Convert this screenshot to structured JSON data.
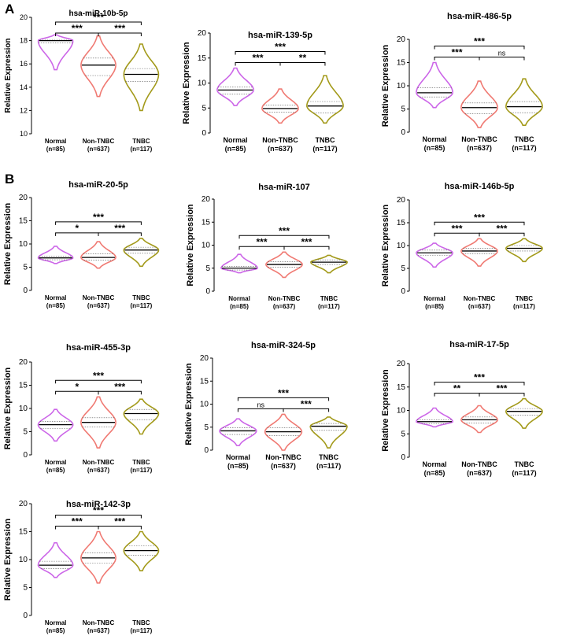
{
  "panels": {
    "A": "A",
    "B": "B"
  },
  "colors": {
    "Normal": "#cc66e8",
    "Non-TNBC": "#f07a73",
    "TNBC": "#a39a1a"
  },
  "chart_data": [
    {
      "type": "violin",
      "panel": "A",
      "title": "hsa-miR-10b-5p",
      "ylabel": "Relative Expression",
      "ylim": [
        10,
        20
      ],
      "yticks": [
        10,
        12,
        14,
        16,
        18,
        20
      ],
      "categories": [
        "Normal",
        "Non-TNBC",
        "TNBC"
      ],
      "counts": [
        "(n=85)",
        "(n=637)",
        "(n=117)"
      ],
      "series": [
        {
          "name": "Normal",
          "min": 15.5,
          "max": 18.5,
          "median": 18.0,
          "q1": 17.8,
          "q3": 18.1
        },
        {
          "name": "Non-TNBC",
          "min": 13.2,
          "max": 18.4,
          "median": 15.9,
          "q1": 15.0,
          "q3": 16.5
        },
        {
          "name": "TNBC",
          "min": 12.0,
          "max": 17.7,
          "median": 15.1,
          "q1": 14.5,
          "q3": 15.6
        }
      ],
      "comparisons": [
        {
          "a": 0,
          "b": 1,
          "label": "***"
        },
        {
          "a": 1,
          "b": 2,
          "label": "***"
        },
        {
          "a": 0,
          "b": 2,
          "label": "***"
        }
      ]
    },
    {
      "type": "violin",
      "panel": "A",
      "title": "hsa-miR-139-5p",
      "ylabel": "Relative Expression",
      "ylim": [
        0,
        20
      ],
      "yticks": [
        0,
        5,
        10,
        15,
        20
      ],
      "categories": [
        "Normal",
        "Non-TNBC",
        "TNBC"
      ],
      "counts": [
        "(n=85)",
        "(n=637)",
        "(n=117)"
      ],
      "series": [
        {
          "name": "Normal",
          "min": 5.5,
          "max": 13.0,
          "median": 8.6,
          "q1": 7.8,
          "q3": 9.2
        },
        {
          "name": "Non-TNBC",
          "min": 2.0,
          "max": 8.8,
          "median": 4.9,
          "q1": 4.2,
          "q3": 5.6
        },
        {
          "name": "TNBC",
          "min": 2.0,
          "max": 11.5,
          "median": 5.4,
          "q1": 4.0,
          "q3": 6.3
        }
      ],
      "comparisons": [
        {
          "a": 0,
          "b": 1,
          "label": "***"
        },
        {
          "a": 1,
          "b": 2,
          "label": "**"
        },
        {
          "a": 0,
          "b": 2,
          "label": "***"
        }
      ]
    },
    {
      "type": "violin",
      "panel": "A",
      "title": "hsa-miR-486-5p",
      "ylabel": "Relative Expression",
      "ylim": [
        0,
        20
      ],
      "yticks": [
        0,
        5,
        10,
        15,
        20
      ],
      "categories": [
        "Normal",
        "Non-TNBC",
        "TNBC"
      ],
      "counts": [
        "(n=85)",
        "(n=637)",
        "(n=117)"
      ],
      "series": [
        {
          "name": "Normal",
          "min": 5.3,
          "max": 15.0,
          "median": 8.5,
          "q1": 7.6,
          "q3": 9.6
        },
        {
          "name": "Non-TNBC",
          "min": 1.0,
          "max": 11.0,
          "median": 5.3,
          "q1": 4.0,
          "q3": 6.3
        },
        {
          "name": "TNBC",
          "min": 1.5,
          "max": 11.5,
          "median": 5.5,
          "q1": 4.2,
          "q3": 6.6
        }
      ],
      "comparisons": [
        {
          "a": 0,
          "b": 1,
          "label": "***"
        },
        {
          "a": 1,
          "b": 2,
          "label": "ns"
        },
        {
          "a": 0,
          "b": 2,
          "label": "***"
        }
      ]
    },
    {
      "type": "violin",
      "panel": "B",
      "title": "hsa-miR-20-5p",
      "ylabel": "Relative Expression",
      "ylim": [
        0,
        20
      ],
      "yticks": [
        0,
        5,
        10,
        15,
        20
      ],
      "categories": [
        "Normal",
        "Non-TNBC",
        "TNBC"
      ],
      "counts": [
        "(n=85)",
        "(n=637)",
        "(n=117)"
      ],
      "series": [
        {
          "name": "Normal",
          "min": 5.8,
          "max": 9.5,
          "median": 7.0,
          "q1": 6.6,
          "q3": 7.4
        },
        {
          "name": "Non-TNBC",
          "min": 4.8,
          "max": 10.5,
          "median": 7.1,
          "q1": 6.5,
          "q3": 7.9
        },
        {
          "name": "TNBC",
          "min": 5.2,
          "max": 11.2,
          "median": 8.7,
          "q1": 8.0,
          "q3": 9.3
        }
      ],
      "comparisons": [
        {
          "a": 0,
          "b": 1,
          "label": "*"
        },
        {
          "a": 1,
          "b": 2,
          "label": "***"
        },
        {
          "a": 0,
          "b": 2,
          "label": "***"
        }
      ]
    },
    {
      "type": "violin",
      "panel": "B",
      "title": "hsa-miR-107",
      "ylabel": "Relative Expression",
      "ylim": [
        0,
        20
      ],
      "yticks": [
        0,
        5,
        10,
        15,
        20
      ],
      "categories": [
        "Normal",
        "Non-TNBC",
        "TNBC"
      ],
      "counts": [
        "(n=85)",
        "(n=637)",
        "(n=117)"
      ],
      "series": [
        {
          "name": "Normal",
          "min": 4.0,
          "max": 8.0,
          "median": 5.0,
          "q1": 4.6,
          "q3": 5.4
        },
        {
          "name": "Non-TNBC",
          "min": 3.0,
          "max": 8.5,
          "median": 5.8,
          "q1": 5.2,
          "q3": 6.4
        },
        {
          "name": "TNBC",
          "min": 4.0,
          "max": 7.8,
          "median": 6.3,
          "q1": 5.8,
          "q3": 6.8
        }
      ],
      "comparisons": [
        {
          "a": 0,
          "b": 1,
          "label": "***"
        },
        {
          "a": 1,
          "b": 2,
          "label": "***"
        },
        {
          "a": 0,
          "b": 2,
          "label": "***"
        }
      ]
    },
    {
      "type": "violin",
      "panel": "B",
      "title": "hsa-miR-146b-5p",
      "ylabel": "Relative Expression",
      "ylim": [
        0,
        20
      ],
      "yticks": [
        0,
        5,
        10,
        15,
        20
      ],
      "categories": [
        "Normal",
        "Non-TNBC",
        "TNBC"
      ],
      "counts": [
        "(n=85)",
        "(n=637)",
        "(n=117)"
      ],
      "series": [
        {
          "name": "Normal",
          "min": 5.3,
          "max": 10.5,
          "median": 8.4,
          "q1": 7.8,
          "q3": 9.0
        },
        {
          "name": "Non-TNBC",
          "min": 5.5,
          "max": 11.5,
          "median": 8.8,
          "q1": 8.2,
          "q3": 9.4
        },
        {
          "name": "TNBC",
          "min": 6.5,
          "max": 11.5,
          "median": 9.4,
          "q1": 8.8,
          "q3": 10.0
        }
      ],
      "comparisons": [
        {
          "a": 0,
          "b": 1,
          "label": "***"
        },
        {
          "a": 1,
          "b": 2,
          "label": "***"
        },
        {
          "a": 0,
          "b": 2,
          "label": "***"
        }
      ]
    },
    {
      "type": "violin",
      "panel": "B",
      "title": "hsa-miR-455-3p",
      "ylabel": "Relative Expression",
      "ylim": [
        0,
        20
      ],
      "yticks": [
        0,
        5,
        10,
        15,
        20
      ],
      "categories": [
        "Normal",
        "Non-TNBC",
        "TNBC"
      ],
      "counts": [
        "(n=85)",
        "(n=637)",
        "(n=117)"
      ],
      "series": [
        {
          "name": "Normal",
          "min": 3.0,
          "max": 9.8,
          "median": 6.5,
          "q1": 5.7,
          "q3": 7.2
        },
        {
          "name": "Non-TNBC",
          "min": 1.5,
          "max": 12.5,
          "median": 7.0,
          "q1": 6.0,
          "q3": 8.0
        },
        {
          "name": "TNBC",
          "min": 4.5,
          "max": 12.0,
          "median": 8.9,
          "q1": 7.6,
          "q3": 9.8
        }
      ],
      "comparisons": [
        {
          "a": 0,
          "b": 1,
          "label": "*"
        },
        {
          "a": 1,
          "b": 2,
          "label": "***"
        },
        {
          "a": 0,
          "b": 2,
          "label": "***"
        }
      ]
    },
    {
      "type": "violin",
      "panel": "B",
      "title": "hsa-miR-324-5p",
      "ylabel": "Relative Expression",
      "ylim": [
        0,
        20
      ],
      "yticks": [
        0,
        5,
        10,
        15,
        20
      ],
      "categories": [
        "Normal",
        "Non-TNBC",
        "TNBC"
      ],
      "counts": [
        "(n=85)",
        "(n=637)",
        "(n=117)"
      ],
      "series": [
        {
          "name": "Normal",
          "min": 1.0,
          "max": 6.8,
          "median": 4.2,
          "q1": 3.4,
          "q3": 4.9
        },
        {
          "name": "Non-TNBC",
          "min": 0.0,
          "max": 7.8,
          "median": 4.0,
          "q1": 3.2,
          "q3": 4.9
        },
        {
          "name": "TNBC",
          "min": 0.5,
          "max": 7.2,
          "median": 5.2,
          "q1": 4.3,
          "q3": 5.8
        }
      ],
      "comparisons": [
        {
          "a": 0,
          "b": 1,
          "label": "ns"
        },
        {
          "a": 1,
          "b": 2,
          "label": "***"
        },
        {
          "a": 0,
          "b": 2,
          "label": "***"
        }
      ]
    },
    {
      "type": "violin",
      "panel": "B",
      "title": "hsa-miR-17-5p",
      "ylabel": "Relative Expression",
      "ylim": [
        0,
        20
      ],
      "yticks": [
        0,
        5,
        10,
        15,
        20
      ],
      "categories": [
        "Normal",
        "Non-TNBC",
        "TNBC"
      ],
      "counts": [
        "(n=85)",
        "(n=637)",
        "(n=117)"
      ],
      "series": [
        {
          "name": "Normal",
          "min": 6.5,
          "max": 10.5,
          "median": 7.6,
          "q1": 7.2,
          "q3": 8.0
        },
        {
          "name": "Non-TNBC",
          "min": 5.3,
          "max": 11.0,
          "median": 8.0,
          "q1": 7.3,
          "q3": 8.6
        },
        {
          "name": "TNBC",
          "min": 6.2,
          "max": 12.5,
          "median": 9.8,
          "q1": 9.0,
          "q3": 10.4
        }
      ],
      "comparisons": [
        {
          "a": 0,
          "b": 1,
          "label": "**"
        },
        {
          "a": 1,
          "b": 2,
          "label": "***"
        },
        {
          "a": 0,
          "b": 2,
          "label": "***"
        }
      ]
    },
    {
      "type": "violin",
      "panel": "B",
      "title": "hsa-miR-142-3p",
      "ylabel": "Relative Expression",
      "ylim": [
        0,
        20
      ],
      "yticks": [
        0,
        5,
        10,
        15,
        20
      ],
      "categories": [
        "Normal",
        "Non-TNBC",
        "TNBC"
      ],
      "counts": [
        "(n=85)",
        "(n=637)",
        "(n=117)"
      ],
      "series": [
        {
          "name": "Normal",
          "min": 6.8,
          "max": 13.0,
          "median": 9.0,
          "q1": 8.4,
          "q3": 9.7
        },
        {
          "name": "Non-TNBC",
          "min": 5.8,
          "max": 15.0,
          "median": 10.3,
          "q1": 9.4,
          "q3": 11.2
        },
        {
          "name": "TNBC",
          "min": 8.0,
          "max": 15.0,
          "median": 11.6,
          "q1": 10.8,
          "q3": 12.5
        }
      ],
      "comparisons": [
        {
          "a": 0,
          "b": 1,
          "label": "***"
        },
        {
          "a": 1,
          "b": 2,
          "label": "***"
        },
        {
          "a": 0,
          "b": 2,
          "label": "***"
        }
      ]
    }
  ]
}
